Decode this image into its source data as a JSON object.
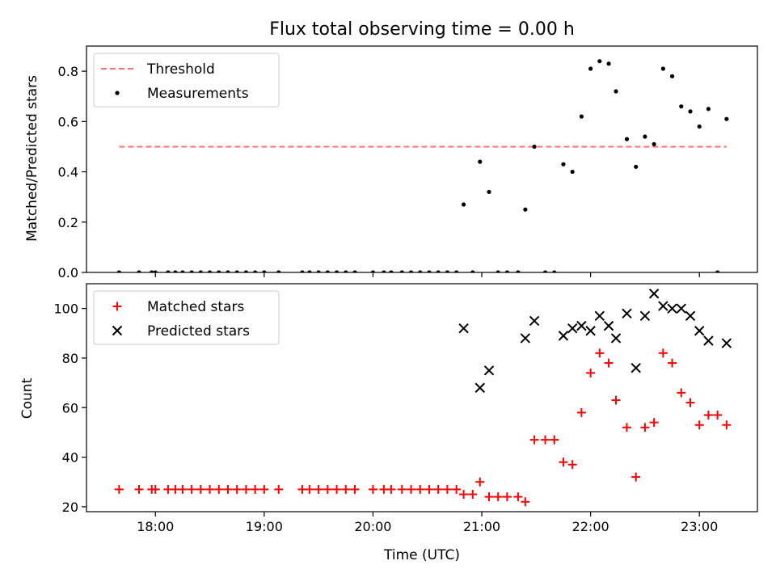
{
  "chart_data": [
    {
      "type": "scatter",
      "title": "Flux total observing time = 0.00 h",
      "xlabel": "",
      "ylabel": "Matched/Predicted stars",
      "xlim": [
        "17:22",
        "23:32"
      ],
      "ylim": [
        0,
        0.9
      ],
      "yticks": [
        "0.0",
        "0.2",
        "0.4",
        "0.6",
        "0.8"
      ],
      "xticks": [
        "18:00",
        "19:00",
        "20:00",
        "21:00",
        "22:00",
        "23:00"
      ],
      "legend": {
        "placement": "top-left",
        "entries": [
          "Threshold",
          "Measurements"
        ]
      },
      "threshold": {
        "name": "Threshold",
        "y": 0.5,
        "x_range": [
          "17:40",
          "23:15"
        ],
        "color": "#ff7070",
        "style": "dashed"
      },
      "series": [
        {
          "name": "Measurements",
          "color": "#000000",
          "marker": "dot",
          "points": [
            [
              "17:40",
              0.0
            ],
            [
              "17:51",
              0.0
            ],
            [
              "17:58",
              0.0
            ],
            [
              "18:00",
              0.0
            ],
            [
              "18:07",
              0.0
            ],
            [
              "18:11",
              0.0
            ],
            [
              "18:15",
              0.0
            ],
            [
              "18:20",
              0.0
            ],
            [
              "18:25",
              0.0
            ],
            [
              "18:30",
              0.0
            ],
            [
              "18:35",
              0.0
            ],
            [
              "18:40",
              0.0
            ],
            [
              "18:45",
              0.0
            ],
            [
              "18:50",
              0.0
            ],
            [
              "18:55",
              0.0
            ],
            [
              "19:00",
              0.0
            ],
            [
              "19:08",
              0.0
            ],
            [
              "19:21",
              0.0
            ],
            [
              "19:25",
              0.0
            ],
            [
              "19:30",
              0.0
            ],
            [
              "19:35",
              0.0
            ],
            [
              "19:40",
              0.0
            ],
            [
              "19:45",
              0.0
            ],
            [
              "19:50",
              0.0
            ],
            [
              "20:00",
              0.0
            ],
            [
              "20:06",
              0.0
            ],
            [
              "20:10",
              0.0
            ],
            [
              "20:16",
              0.0
            ],
            [
              "20:21",
              0.0
            ],
            [
              "20:26",
              0.0
            ],
            [
              "20:31",
              0.0
            ],
            [
              "20:36",
              0.0
            ],
            [
              "20:41",
              0.0
            ],
            [
              "20:46",
              0.0
            ],
            [
              "20:50",
              0.27
            ],
            [
              "20:55",
              0.0
            ],
            [
              "20:59",
              0.44
            ],
            [
              "21:04",
              0.32
            ],
            [
              "21:09",
              0.0
            ],
            [
              "21:14",
              0.0
            ],
            [
              "21:20",
              0.0
            ],
            [
              "21:24",
              0.25
            ],
            [
              "21:29",
              0.5
            ],
            [
              "21:35",
              0.0
            ],
            [
              "21:40",
              0.0
            ],
            [
              "21:45",
              0.43
            ],
            [
              "21:50",
              0.4
            ],
            [
              "21:55",
              0.62
            ],
            [
              "22:00",
              0.81
            ],
            [
              "22:05",
              0.84
            ],
            [
              "22:10",
              0.83
            ],
            [
              "22:14",
              0.72
            ],
            [
              "22:20",
              0.53
            ],
            [
              "22:25",
              0.42
            ],
            [
              "22:30",
              0.54
            ],
            [
              "22:35",
              0.51
            ],
            [
              "22:40",
              0.81
            ],
            [
              "22:45",
              0.78
            ],
            [
              "22:50",
              0.66
            ],
            [
              "22:55",
              0.64
            ],
            [
              "23:00",
              0.58
            ],
            [
              "23:05",
              0.65
            ],
            [
              "23:10",
              0.0
            ],
            [
              "23:15",
              0.61
            ]
          ]
        }
      ]
    },
    {
      "type": "scatter",
      "title": "",
      "xlabel": "Time (UTC)",
      "ylabel": "Count",
      "xlim": [
        "17:22",
        "23:32"
      ],
      "ylim": [
        18,
        110
      ],
      "yticks": [
        "20",
        "40",
        "60",
        "80",
        "100"
      ],
      "xticks": [
        "18:00",
        "19:00",
        "20:00",
        "21:00",
        "22:00",
        "23:00"
      ],
      "legend": {
        "placement": "top-left",
        "entries": [
          "Matched stars",
          "Predicted stars"
        ]
      },
      "series": [
        {
          "name": "Matched stars",
          "color": "#ff0000",
          "marker": "plus",
          "points": [
            [
              "17:40",
              27
            ],
            [
              "17:51",
              27
            ],
            [
              "17:58",
              27
            ],
            [
              "18:00",
              27
            ],
            [
              "18:07",
              27
            ],
            [
              "18:11",
              27
            ],
            [
              "18:15",
              27
            ],
            [
              "18:20",
              27
            ],
            [
              "18:25",
              27
            ],
            [
              "18:30",
              27
            ],
            [
              "18:35",
              27
            ],
            [
              "18:40",
              27
            ],
            [
              "18:45",
              27
            ],
            [
              "18:50",
              27
            ],
            [
              "18:55",
              27
            ],
            [
              "19:00",
              27
            ],
            [
              "19:08",
              27
            ],
            [
              "19:21",
              27
            ],
            [
              "19:25",
              27
            ],
            [
              "19:30",
              27
            ],
            [
              "19:35",
              27
            ],
            [
              "19:40",
              27
            ],
            [
              "19:45",
              27
            ],
            [
              "19:50",
              27
            ],
            [
              "20:00",
              27
            ],
            [
              "20:06",
              27
            ],
            [
              "20:10",
              27
            ],
            [
              "20:16",
              27
            ],
            [
              "20:21",
              27
            ],
            [
              "20:26",
              27
            ],
            [
              "20:31",
              27
            ],
            [
              "20:36",
              27
            ],
            [
              "20:41",
              27
            ],
            [
              "20:46",
              27
            ],
            [
              "20:50",
              25
            ],
            [
              "20:55",
              25
            ],
            [
              "20:59",
              30
            ],
            [
              "21:04",
              24
            ],
            [
              "21:09",
              24
            ],
            [
              "21:14",
              24
            ],
            [
              "21:20",
              24
            ],
            [
              "21:24",
              22
            ],
            [
              "21:29",
              47
            ],
            [
              "21:35",
              47
            ],
            [
              "21:40",
              47
            ],
            [
              "21:45",
              38
            ],
            [
              "21:50",
              37
            ],
            [
              "21:55",
              58
            ],
            [
              "22:00",
              74
            ],
            [
              "22:05",
              82
            ],
            [
              "22:10",
              78
            ],
            [
              "22:14",
              63
            ],
            [
              "22:20",
              52
            ],
            [
              "22:25",
              32
            ],
            [
              "22:30",
              52
            ],
            [
              "22:35",
              54
            ],
            [
              "22:40",
              82
            ],
            [
              "22:45",
              78
            ],
            [
              "22:50",
              66
            ],
            [
              "22:55",
              62
            ],
            [
              "23:00",
              53
            ],
            [
              "23:05",
              57
            ],
            [
              "23:10",
              57
            ],
            [
              "23:15",
              53
            ]
          ]
        },
        {
          "name": "Predicted stars",
          "color": "#000000",
          "marker": "x",
          "points": [
            [
              "20:50",
              92
            ],
            [
              "20:59",
              68
            ],
            [
              "21:04",
              75
            ],
            [
              "21:24",
              88
            ],
            [
              "21:29",
              95
            ],
            [
              "21:45",
              89
            ],
            [
              "21:50",
              92
            ],
            [
              "21:55",
              93
            ],
            [
              "22:00",
              91
            ],
            [
              "22:05",
              97
            ],
            [
              "22:10",
              93
            ],
            [
              "22:14",
              88
            ],
            [
              "22:20",
              98
            ],
            [
              "22:25",
              76
            ],
            [
              "22:30",
              97
            ],
            [
              "22:35",
              106
            ],
            [
              "22:40",
              101
            ],
            [
              "22:45",
              100
            ],
            [
              "22:50",
              100
            ],
            [
              "22:55",
              97
            ],
            [
              "23:00",
              91
            ],
            [
              "23:05",
              87
            ],
            [
              "23:15",
              86
            ]
          ]
        }
      ]
    }
  ]
}
